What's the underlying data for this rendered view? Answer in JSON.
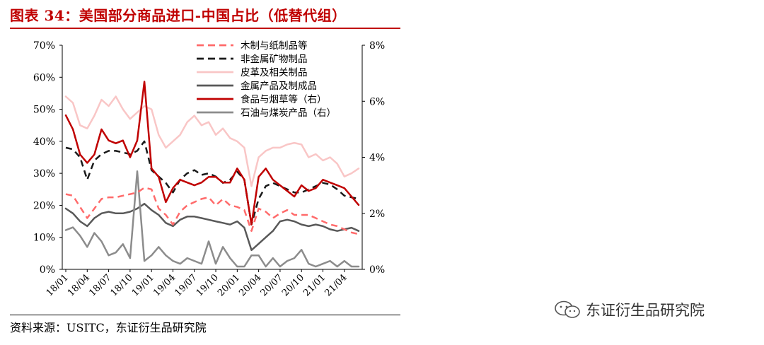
{
  "title": "图表 34：美国部分商品进口-中国占比（低替代组）",
  "source": "资料来源：USITC，东证衍生品研究院",
  "watermark": "东证衍生品研究院",
  "chart_data": {
    "type": "line",
    "x": [
      "18/01",
      "18/02",
      "18/03",
      "18/04",
      "18/05",
      "18/06",
      "18/07",
      "18/08",
      "18/09",
      "18/10",
      "18/11",
      "18/12",
      "19/01",
      "19/02",
      "19/03",
      "19/04",
      "19/05",
      "19/06",
      "19/07",
      "19/08",
      "19/09",
      "19/10",
      "19/11",
      "19/12",
      "20/01",
      "20/02",
      "20/03",
      "20/04",
      "20/05",
      "20/06",
      "20/07",
      "20/08",
      "20/09",
      "20/10",
      "20/11",
      "20/12",
      "21/01",
      "21/02",
      "21/03",
      "21/04",
      "21/05",
      "21/06"
    ],
    "x_ticks": [
      "18/01",
      "18/04",
      "18/07",
      "18/10",
      "19/01",
      "19/04",
      "19/07",
      "19/10",
      "20/01",
      "20/04",
      "20/07",
      "20/10",
      "21/01",
      "21/04"
    ],
    "y_left": {
      "ticks": [
        "0%",
        "10%",
        "20%",
        "30%",
        "40%",
        "50%",
        "60%",
        "70%"
      ],
      "ylim": [
        0,
        70
      ]
    },
    "y_right": {
      "ticks": [
        "0%",
        "2%",
        "4%",
        "6%",
        "8%"
      ],
      "ylim": [
        0,
        8
      ]
    },
    "legend_position": "top-right",
    "series": [
      {
        "name": "木制与纸制品等",
        "axis": "left",
        "color": "#ff6b6b",
        "dash": "dash",
        "width": 2.5,
        "values": [
          23.5,
          23,
          19.5,
          16,
          19,
          22,
          22.5,
          22.5,
          23,
          23.5,
          24,
          25.5,
          25,
          19,
          17,
          14,
          18,
          20,
          21,
          22,
          22.5,
          20,
          22,
          20,
          19.5,
          18.5,
          12,
          19,
          18,
          16,
          17.5,
          18.5,
          17,
          17,
          17,
          16,
          15,
          14,
          13.5,
          12.5,
          11.5,
          11
        ]
      },
      {
        "name": "非金属矿物制品",
        "axis": "left",
        "color": "#1a1a1a",
        "dash": "dash",
        "width": 2.5,
        "values": [
          38,
          37.5,
          35,
          28,
          34,
          36,
          37,
          37,
          36.5,
          36,
          37,
          40,
          31,
          29,
          27,
          24,
          28,
          30,
          31,
          29.5,
          30,
          29,
          27,
          28,
          30.5,
          28,
          14,
          22,
          26,
          27,
          26,
          25,
          24,
          24,
          25,
          26,
          27,
          26.5,
          25,
          23,
          22.5,
          22
        ]
      },
      {
        "name": "皮革及相关制品",
        "axis": "left",
        "color": "#f9c6c6",
        "dash": "solid",
        "width": 2.5,
        "values": [
          54,
          52,
          45,
          44,
          48,
          53,
          51,
          54,
          50,
          47,
          49,
          51,
          50,
          42,
          38,
          40,
          42,
          46,
          48,
          45,
          46,
          42,
          44,
          41,
          40,
          38,
          26,
          35,
          37,
          38,
          38,
          39,
          39.5,
          39,
          35,
          36,
          34,
          35,
          33,
          29,
          30,
          31.5
        ]
      },
      {
        "name": "金属产品及制成品",
        "axis": "left",
        "color": "#595959",
        "dash": "solid",
        "width": 2.5,
        "values": [
          19,
          17.5,
          15,
          13.5,
          16,
          17.5,
          18,
          17.5,
          17.5,
          18,
          19,
          20.5,
          18.5,
          17,
          14.5,
          13.5,
          15.5,
          16.5,
          16.5,
          16,
          15.5,
          15,
          14.5,
          14,
          15,
          13,
          6,
          8,
          10,
          12,
          15,
          15.5,
          15,
          14,
          13.5,
          14,
          13.5,
          12.5,
          12,
          12.5,
          13,
          12
        ]
      },
      {
        "name": "食品与烟草等（右）",
        "axis": "right",
        "color": "#c00000",
        "dash": "solid",
        "width": 2.5,
        "values": [
          5.5,
          5.0,
          4.1,
          3.8,
          4.1,
          5.0,
          4.6,
          4.5,
          4.6,
          4.0,
          4.6,
          6.7,
          3.6,
          3.3,
          2.4,
          2.9,
          3.2,
          3.1,
          3.0,
          3.1,
          3.3,
          3.3,
          3.1,
          3.1,
          3.6,
          3.2,
          1.6,
          3.3,
          3.6,
          3.2,
          3.0,
          2.8,
          2.6,
          3.0,
          2.8,
          2.9,
          3.2,
          3.1,
          3.0,
          2.9,
          2.6,
          2.3
        ]
      },
      {
        "name": "石油与煤炭产品（右）",
        "axis": "right",
        "color": "#8c8c8c",
        "dash": "solid",
        "width": 2.5,
        "values": [
          1.4,
          1.5,
          1.2,
          0.8,
          1.3,
          1.0,
          0.5,
          0.6,
          0.9,
          0.4,
          3.5,
          0.3,
          0.5,
          0.8,
          0.5,
          0.3,
          0.2,
          0.4,
          0.3,
          0.2,
          1.0,
          0.2,
          0.8,
          0.4,
          0.1,
          0.1,
          0.5,
          0.5,
          0.1,
          0.4,
          0.1,
          0.3,
          0.4,
          0.7,
          0.2,
          0.1,
          0.2,
          0.3,
          0.1,
          0.3,
          0.1,
          0.1
        ]
      }
    ]
  }
}
